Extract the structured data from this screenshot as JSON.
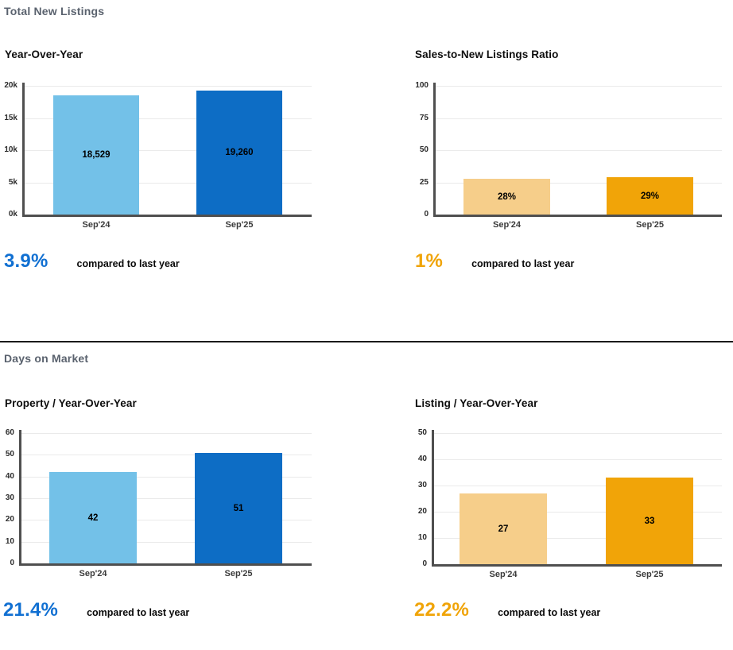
{
  "sections": [
    {
      "title": "Total New Listings"
    },
    {
      "title": "Days on Market"
    }
  ],
  "chart_data": [
    {
      "id": "total-new-listings-year-over-year",
      "type": "bar",
      "title": "Year-Over-Year",
      "categories": [
        "Sep'24",
        "Sep'25"
      ],
      "values": [
        18529,
        19260
      ],
      "value_labels": [
        "18,529",
        "19,260"
      ],
      "bar_colors": [
        "#73C1E8",
        "#0D6DC5"
      ],
      "ylim": [
        0,
        20000
      ],
      "ytick_labels": [
        "0k",
        "5k",
        "10k",
        "15k",
        "20k"
      ],
      "grid": true,
      "legend": "none",
      "callout": {
        "value": "3.9%",
        "note": "compared to last year",
        "color": "#1170D2"
      }
    },
    {
      "id": "sales-to-new-listings-ratio",
      "type": "bar",
      "title": "Sales-to-New Listings Ratio",
      "categories": [
        "Sep'24",
        "Sep'25"
      ],
      "values": [
        28,
        29
      ],
      "value_labels": [
        "28%",
        "29%"
      ],
      "bar_colors": [
        "#F6CE8A",
        "#F1A408"
      ],
      "ylim": [
        0,
        100
      ],
      "ytick_labels": [
        "0",
        "25",
        "50",
        "75",
        "100"
      ],
      "grid": true,
      "legend": "none",
      "callout": {
        "value": "1%",
        "note": "compared to last year",
        "color": "#F0A408"
      }
    },
    {
      "id": "days-on-market-property-year-over-year",
      "type": "bar",
      "title": "Property / Year-Over-Year",
      "categories": [
        "Sep'24",
        "Sep'25"
      ],
      "values": [
        42,
        51
      ],
      "value_labels": [
        "42",
        "51"
      ],
      "bar_colors": [
        "#73C1E8",
        "#0D6DC5"
      ],
      "ylim": [
        0,
        60
      ],
      "ytick_labels": [
        "0",
        "10",
        "20",
        "30",
        "40",
        "50",
        "60"
      ],
      "grid": true,
      "legend": "none",
      "callout": {
        "value": "21.4%",
        "note": "compared to last year",
        "color": "#1170D2"
      }
    },
    {
      "id": "days-on-market-listing-year-over-year",
      "type": "bar",
      "title": "Listing / Year-Over-Year",
      "categories": [
        "Sep'24",
        "Sep'25"
      ],
      "values": [
        27,
        33
      ],
      "value_labels": [
        "27",
        "33"
      ],
      "bar_colors": [
        "#F6CE8A",
        "#F1A408"
      ],
      "ylim": [
        0,
        50
      ],
      "ytick_labels": [
        "0",
        "10",
        "20",
        "30",
        "40",
        "50"
      ],
      "grid": true,
      "legend": "none",
      "callout": {
        "value": "22.2%",
        "note": "compared to last year",
        "color": "#F0A408"
      }
    }
  ]
}
